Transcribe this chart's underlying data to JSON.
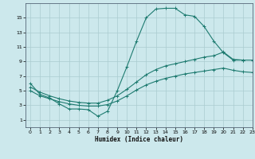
{
  "background_color": "#cce8ec",
  "grid_color": "#aaccd0",
  "line_color": "#1e7b70",
  "xlabel": "Humidex (Indice chaleur)",
  "xlim": [
    -0.5,
    23
  ],
  "ylim": [
    0,
    17
  ],
  "xticks": [
    0,
    1,
    2,
    3,
    4,
    5,
    6,
    7,
    8,
    9,
    10,
    11,
    12,
    13,
    14,
    15,
    16,
    17,
    18,
    19,
    20,
    21,
    22,
    23
  ],
  "yticks": [
    1,
    3,
    5,
    7,
    9,
    11,
    13,
    15
  ],
  "line1_x": [
    0,
    1,
    2,
    3,
    4,
    5,
    6,
    7,
    8,
    9,
    10,
    11,
    12,
    13,
    14,
    15,
    16,
    17,
    18,
    19,
    20,
    21,
    22
  ],
  "line1_y": [
    6.0,
    4.5,
    4.0,
    3.2,
    2.5,
    2.5,
    2.4,
    1.5,
    2.2,
    5.0,
    8.3,
    11.8,
    15.0,
    16.2,
    16.3,
    16.3,
    15.4,
    15.2,
    13.8,
    11.8,
    10.2,
    9.2,
    9.2
  ],
  "line2_x": [
    0,
    1,
    2,
    3,
    4,
    5,
    6,
    7,
    8,
    9,
    10,
    11,
    12,
    13,
    14,
    15,
    16,
    17,
    18,
    19,
    20,
    21,
    22,
    23
  ],
  "line2_y": [
    5.5,
    4.8,
    4.3,
    3.9,
    3.6,
    3.4,
    3.3,
    3.3,
    3.7,
    4.3,
    5.2,
    6.2,
    7.2,
    7.9,
    8.4,
    8.7,
    9.0,
    9.3,
    9.6,
    9.8,
    10.3,
    9.3,
    9.2,
    9.2
  ],
  "line3_x": [
    0,
    1,
    2,
    3,
    4,
    5,
    6,
    7,
    8,
    9,
    10,
    11,
    12,
    13,
    14,
    15,
    16,
    17,
    18,
    19,
    20,
    21,
    22,
    23
  ],
  "line3_y": [
    5.0,
    4.3,
    3.9,
    3.5,
    3.2,
    3.0,
    2.9,
    2.9,
    3.1,
    3.6,
    4.3,
    5.1,
    5.8,
    6.3,
    6.7,
    7.0,
    7.3,
    7.5,
    7.7,
    7.9,
    8.1,
    7.8,
    7.6,
    7.5
  ]
}
